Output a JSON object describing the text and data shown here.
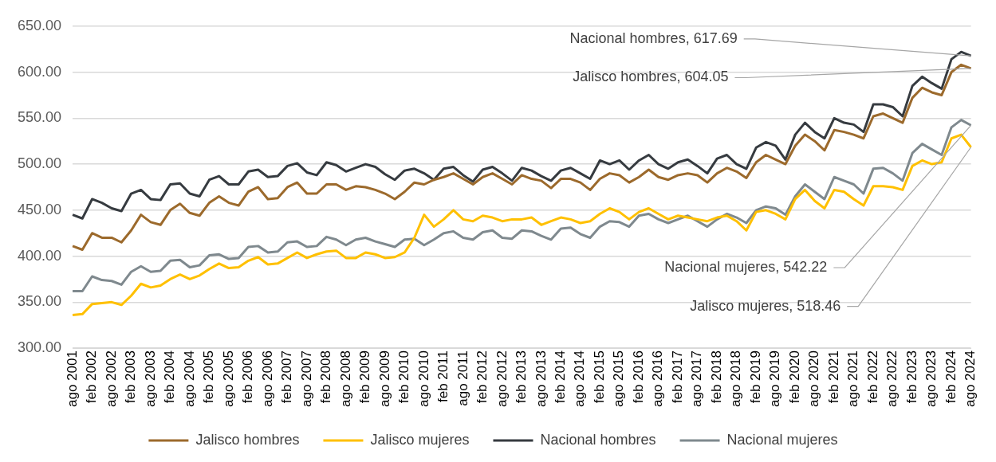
{
  "chart_data": {
    "type": "line",
    "categories": [
      "ago 2001",
      null,
      "feb 2002",
      null,
      "ago 2002",
      null,
      "feb 2003",
      null,
      "ago 2003",
      null,
      "feb 2004",
      null,
      "ago 2004",
      null,
      "feb 2005",
      null,
      "ago 2005",
      null,
      "feb 2006",
      null,
      "ago 2006",
      null,
      "feb 2007",
      null,
      "ago 2007",
      null,
      "feb 2008",
      null,
      "ago 2008",
      null,
      "feb 2009",
      null,
      "ago 2009",
      null,
      "feb 2010",
      null,
      "ago 2010",
      null,
      "feb 2011",
      null,
      "ago 2011",
      null,
      "feb 2012",
      null,
      "ago 2012",
      null,
      "feb 2013",
      null,
      "ago 2013",
      null,
      "feb 2014",
      null,
      "ago 2014",
      null,
      "feb 2015",
      null,
      "ago 2015",
      null,
      "feb 2016",
      null,
      "ago 2016",
      null,
      "feb 2017",
      null,
      "ago 2017",
      null,
      "feb 2018",
      null,
      "ago 2018",
      null,
      "feb 2019",
      null,
      "ago 2019",
      null,
      "feb 2020",
      null,
      "ago 2020",
      null,
      "feb 2021",
      null,
      "ago 2021",
      null,
      "feb 2022",
      null,
      "ago 2022",
      null,
      "feb 2023",
      null,
      "ago 2023",
      null,
      "feb 2024",
      null,
      "ago 2024"
    ],
    "series": [
      {
        "name": "Jalisco hombres",
        "color": "#9c6a2c",
        "values": [
          411,
          407,
          425,
          420,
          420,
          415,
          428,
          445,
          437,
          434,
          450,
          457,
          447,
          444,
          458,
          465,
          458,
          455,
          470,
          475,
          462,
          463,
          475,
          480,
          468,
          468,
          478,
          478,
          472,
          476,
          475,
          472,
          468,
          462,
          470,
          480,
          478,
          483,
          486,
          490,
          484,
          478,
          486,
          490,
          484,
          478,
          488,
          484,
          482,
          474,
          484,
          484,
          480,
          472,
          484,
          490,
          488,
          480,
          486,
          494,
          486,
          483,
          488,
          490,
          488,
          480,
          490,
          496,
          492,
          485,
          502,
          510,
          505,
          500,
          520,
          532,
          525,
          515,
          537,
          535,
          532,
          528,
          552,
          555,
          550,
          545,
          572,
          583,
          578,
          575,
          600,
          608,
          604.05
        ]
      },
      {
        "name": "Jalisco mujeres",
        "color": "#ffc000",
        "values": [
          336,
          337,
          348,
          349,
          350,
          347,
          357,
          370,
          366,
          368,
          375,
          380,
          375,
          379,
          386,
          392,
          387,
          388,
          395,
          399,
          391,
          392,
          398,
          404,
          398,
          402,
          405,
          406,
          398,
          398,
          404,
          402,
          398,
          399,
          404,
          420,
          445,
          432,
          440,
          450,
          440,
          438,
          444,
          442,
          438,
          440,
          440,
          442,
          434,
          438,
          442,
          440,
          436,
          438,
          446,
          452,
          448,
          440,
          448,
          452,
          446,
          440,
          444,
          442,
          440,
          438,
          442,
          444,
          438,
          428,
          448,
          450,
          446,
          440,
          462,
          472,
          460,
          452,
          472,
          470,
          462,
          455,
          476,
          476,
          475,
          472,
          498,
          504,
          500,
          502,
          528,
          532,
          518.46
        ]
      },
      {
        "name": "Nacional hombres",
        "color": "#363b40",
        "values": [
          445,
          441,
          462,
          458,
          452,
          449,
          468,
          472,
          462,
          461,
          478,
          479,
          468,
          465,
          483,
          487,
          478,
          478,
          492,
          494,
          486,
          487,
          498,
          501,
          491,
          488,
          502,
          499,
          492,
          496,
          500,
          497,
          489,
          483,
          493,
          495,
          490,
          483,
          495,
          497,
          488,
          481,
          494,
          497,
          490,
          482,
          496,
          493,
          487,
          482,
          493,
          496,
          490,
          484,
          504,
          500,
          504,
          494,
          504,
          510,
          500,
          495,
          502,
          505,
          498,
          490,
          506,
          510,
          500,
          495,
          518,
          524,
          520,
          505,
          532,
          545,
          535,
          528,
          550,
          545,
          543,
          535,
          565,
          565,
          562,
          552,
          585,
          595,
          588,
          582,
          614,
          622,
          617.69
        ]
      },
      {
        "name": "Nacional mujeres",
        "color": "#7f898e",
        "values": [
          362,
          362,
          378,
          374,
          373,
          369,
          383,
          389,
          383,
          384,
          395,
          396,
          388,
          390,
          401,
          402,
          397,
          398,
          410,
          411,
          404,
          405,
          415,
          416,
          410,
          411,
          421,
          418,
          412,
          418,
          420,
          416,
          413,
          410,
          418,
          419,
          412,
          418,
          425,
          427,
          420,
          418,
          426,
          428,
          420,
          419,
          428,
          427,
          422,
          418,
          430,
          431,
          424,
          420,
          432,
          438,
          437,
          432,
          444,
          446,
          440,
          436,
          440,
          444,
          438,
          432,
          440,
          446,
          442,
          436,
          450,
          454,
          452,
          445,
          465,
          478,
          470,
          462,
          486,
          482,
          478,
          468,
          495,
          496,
          490,
          482,
          512,
          522,
          516,
          510,
          540,
          548,
          542.22
        ]
      }
    ],
    "ylim": [
      300,
      650
    ],
    "yticks": [
      {
        "value": 300,
        "label": "300.00"
      },
      {
        "value": 350,
        "label": "350.00"
      },
      {
        "value": 400,
        "label": "400.00"
      },
      {
        "value": 450,
        "label": "450.00"
      },
      {
        "value": 500,
        "label": "500.00"
      },
      {
        "value": 550,
        "label": "550.00"
      },
      {
        "value": 600,
        "label": "600.00"
      },
      {
        "value": 650,
        "label": "650.00"
      }
    ],
    "grid": "y",
    "legend": "bottom",
    "marker": "none",
    "line_style": "solid",
    "annotations": [
      {
        "text": "Nacional hombres, 617.69",
        "x": "ago 2024",
        "y": 617.69
      },
      {
        "text": "Jalisco hombres, 604.05",
        "x": "ago 2024",
        "y": 604.05
      },
      {
        "text": "Nacional mujeres, 542.22",
        "x": "ago 2024",
        "y": 542.22
      },
      {
        "text": "Jalisco mujeres, 518.46",
        "x": "ago 2024",
        "y": 518.46
      }
    ]
  }
}
